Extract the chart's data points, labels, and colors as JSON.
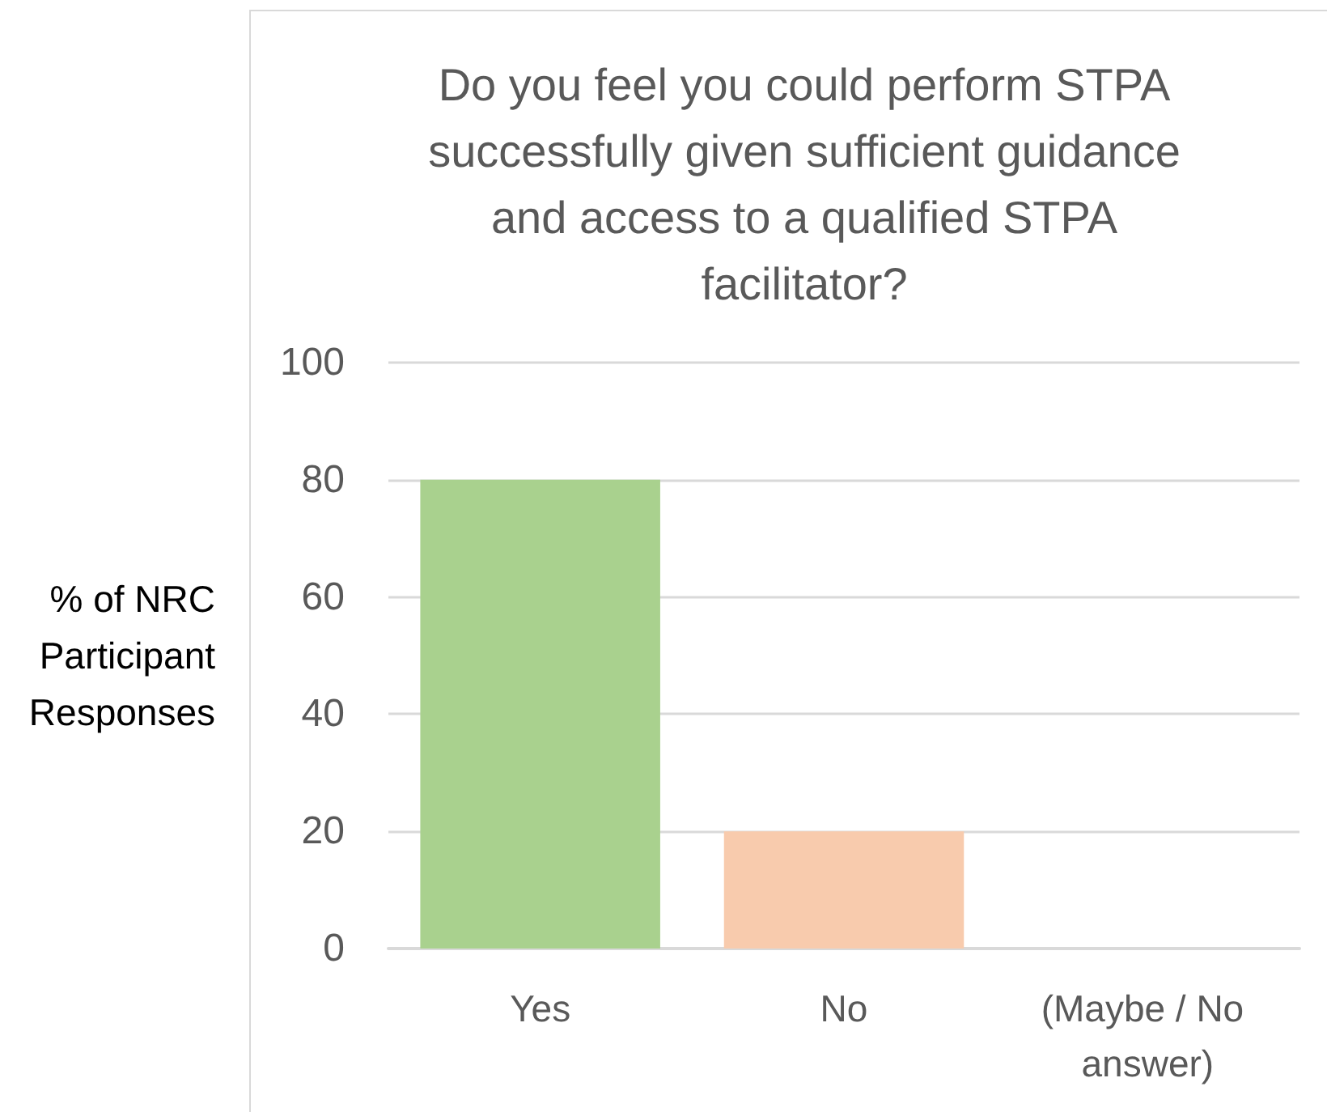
{
  "chart_data": {
    "type": "bar",
    "title": "Do you feel you could perform STPA successfully given sufficient guidance and access to a qualified STPA facilitator?",
    "ylabel": "% of NRC Participant Responses",
    "categories": [
      "Yes",
      "No",
      "(Maybe / No answer)"
    ],
    "values": [
      80,
      20,
      0
    ],
    "colors": [
      "#a9d18e",
      "#f8cbad",
      "#9dc3e6"
    ],
    "ylim": [
      0,
      100
    ],
    "yticks": [
      0,
      20,
      40,
      60,
      80,
      100
    ],
    "grid": "y"
  }
}
